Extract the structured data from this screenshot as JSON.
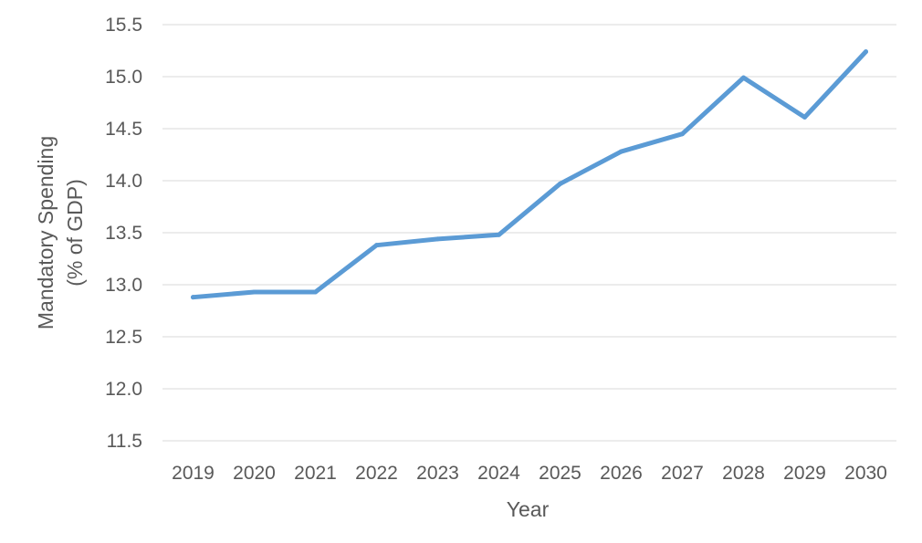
{
  "chart_data": {
    "type": "line",
    "title": "",
    "xlabel": "Year",
    "ylabel_lines": [
      "Mandatory Spending",
      "(% of GDP)"
    ],
    "categories": [
      "2019",
      "2020",
      "2021",
      "2022",
      "2023",
      "2024",
      "2025",
      "2026",
      "2027",
      "2028",
      "2029",
      "2030"
    ],
    "series": [
      {
        "values": [
          12.88,
          12.93,
          12.93,
          13.38,
          13.44,
          13.48,
          13.97,
          14.28,
          14.45,
          14.99,
          14.61,
          15.24
        ],
        "color": "#5b9bd5"
      }
    ],
    "ylim": [
      11.5,
      15.5
    ],
    "yticks": [
      "11.5",
      "12.0",
      "12.5",
      "13.0",
      "13.5",
      "14.0",
      "14.5",
      "15.0",
      "15.5"
    ],
    "grid": true,
    "legend": "none"
  }
}
